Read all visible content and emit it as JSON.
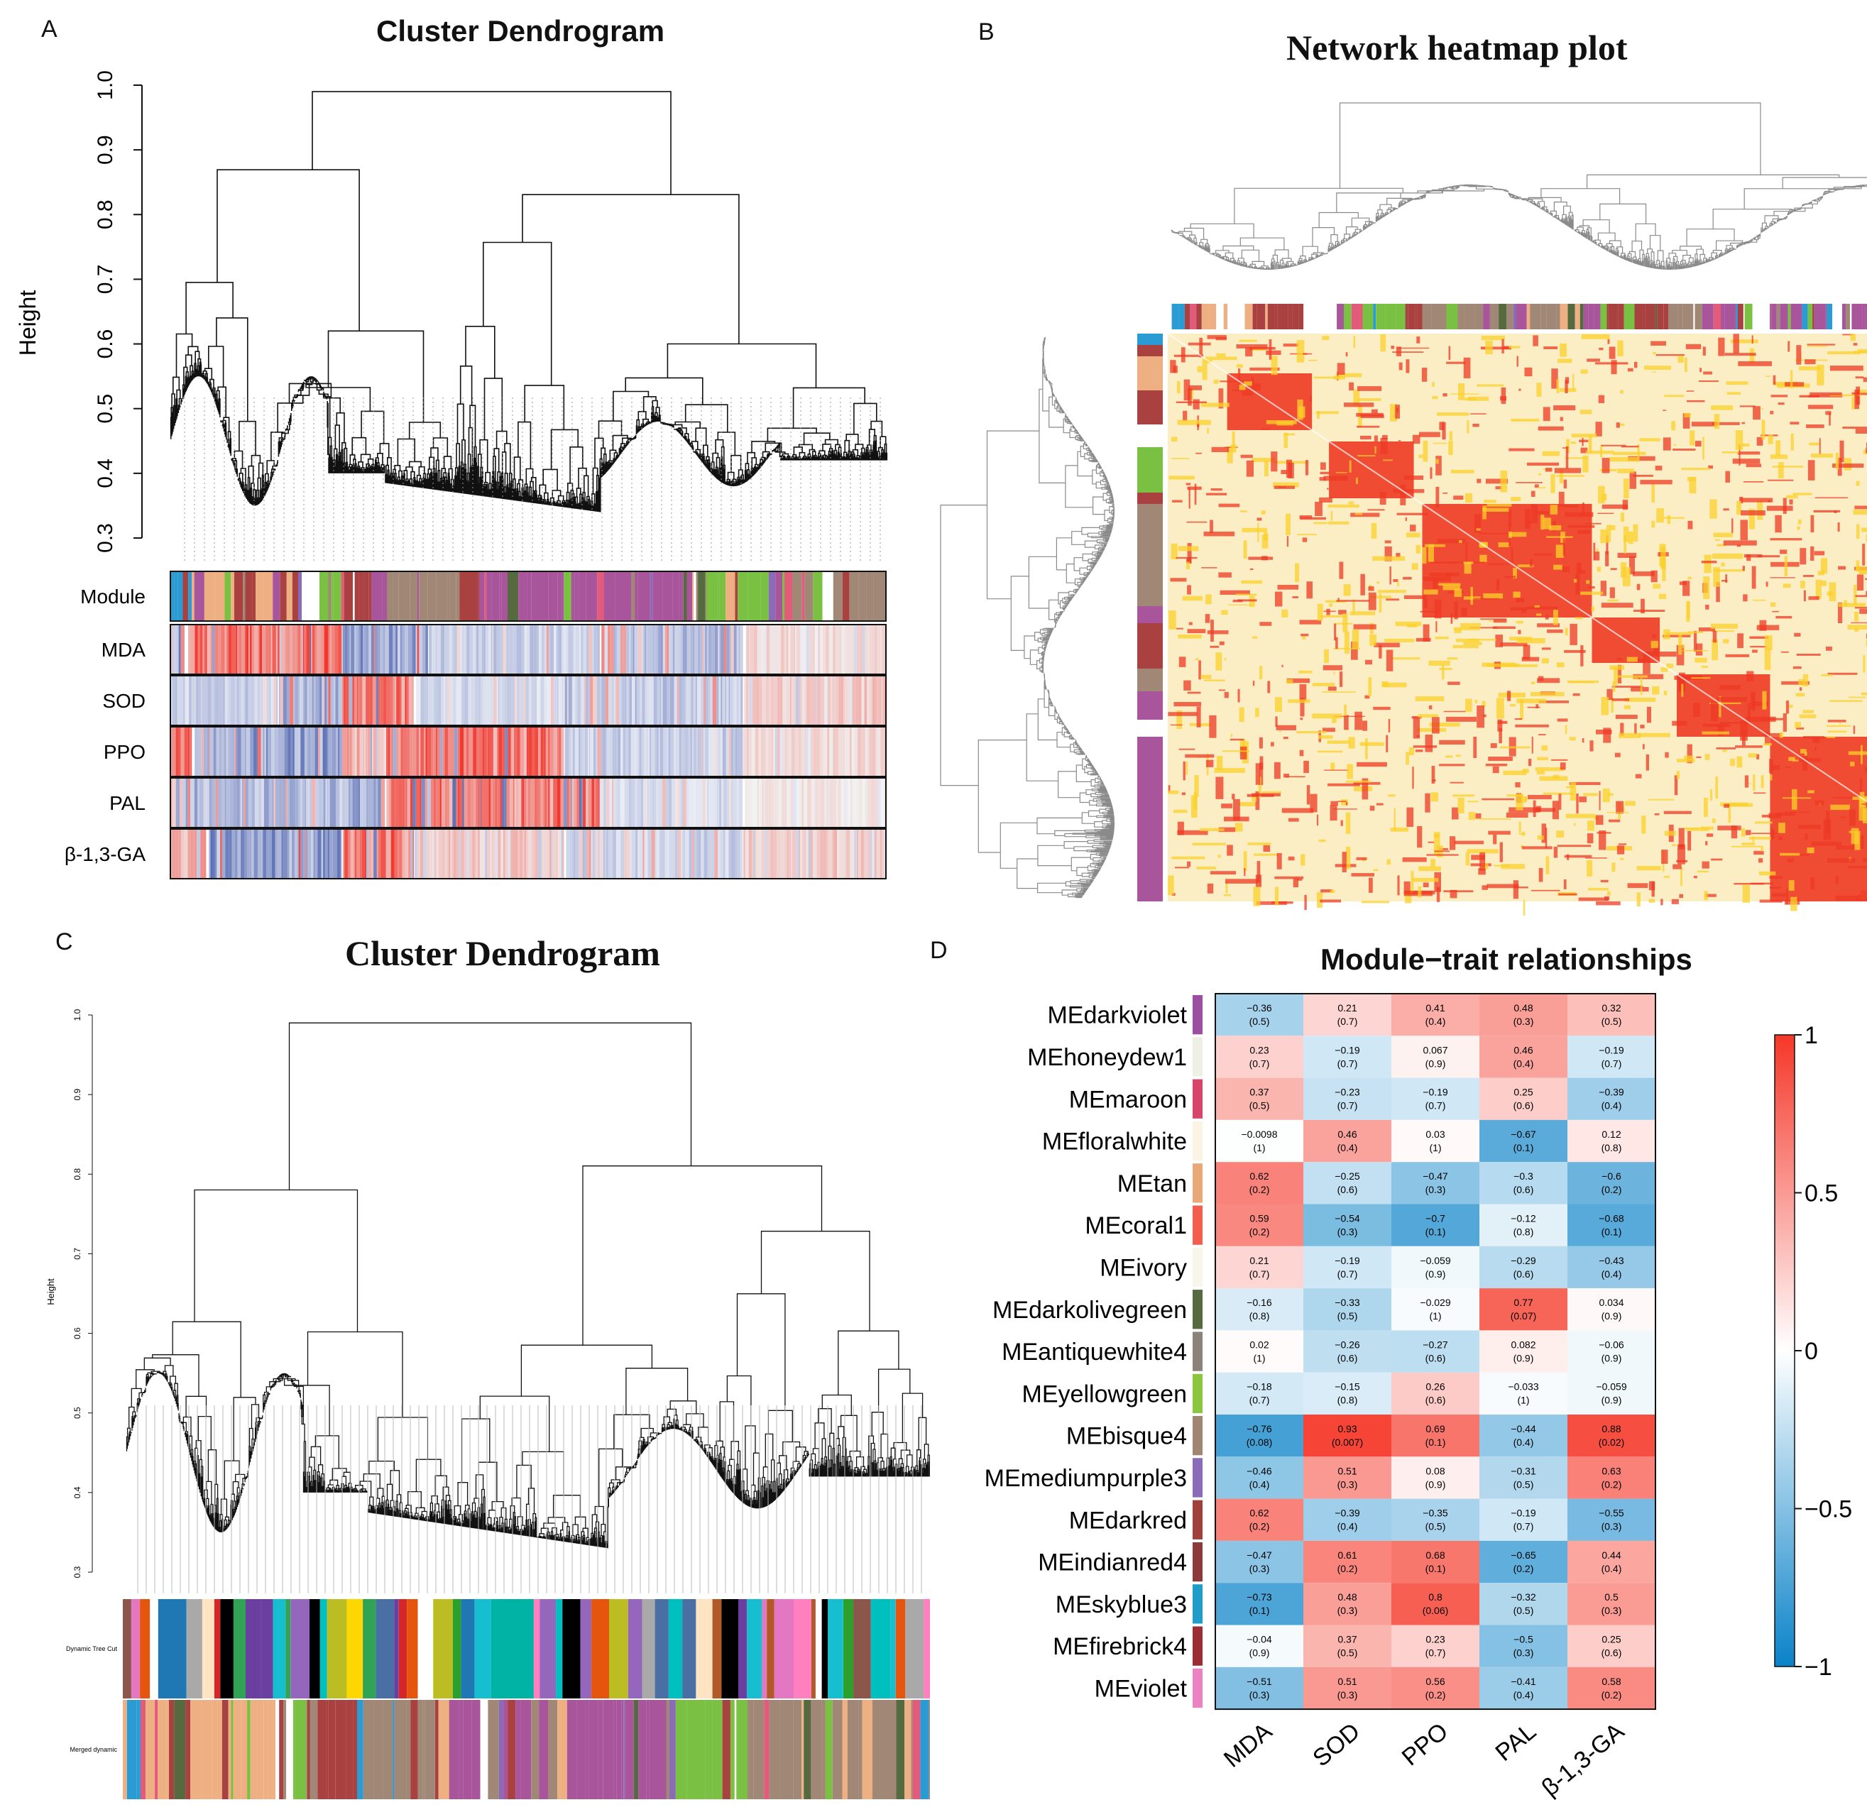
{
  "panel_labels": {
    "a": "A",
    "b": "B",
    "c": "C",
    "d": "D"
  },
  "colors": {
    "tan": "#eeb083",
    "darkred": "#a8413f",
    "brown": "#a08776",
    "purple": "#a8559c",
    "green": "#79c043",
    "skyblue": "#2a9bd3",
    "trait_red": "#f03a2c",
    "trait_blue": "#5b6fb5",
    "heat_bg": "#fbeec4",
    "heat_hot": "#ee3a24",
    "heat_mid": "#fbd02a"
  },
  "chart_data": [
    {
      "type": "dendrogram",
      "title": "Cluster Dendrogram",
      "ylabel": "Height",
      "yticks": [
        "0.3",
        "0.4",
        "0.5",
        "0.6",
        "0.7",
        "0.8",
        "0.9",
        "1.0"
      ],
      "ylim": [
        0.3,
        1.0
      ],
      "row_labels": [
        "Module",
        "MDA",
        "SOD",
        "PPO",
        "PAL",
        "β-1,3-GA"
      ]
    },
    {
      "type": "heatmap",
      "title": "Network heatmap plot"
    },
    {
      "type": "dendrogram",
      "title": "Cluster Dendrogram",
      "ylabel": "Height",
      "yticks": [
        "0.3",
        "0.4",
        "0.5",
        "0.6",
        "0.7",
        "0.8",
        "0.9",
        "1.0"
      ],
      "ylim": [
        0.3,
        1.0
      ],
      "row_labels": [
        "Dynamic Tree Cut",
        "Merged dynamic"
      ]
    },
    {
      "type": "heatmap",
      "title": "Module−trait relationships",
      "columns": [
        "MDA",
        "SOD",
        "PPO",
        "PAL",
        "β-1,3-GA"
      ],
      "rows": [
        {
          "name": "MEdarkviolet",
          "color": "#9c4fa0",
          "values": [
            "−0.36",
            "0.21",
            "0.41",
            "0.48",
            "0.32"
          ],
          "p": [
            "(0.5)",
            "(0.7)",
            "(0.4)",
            "(0.3)",
            "(0.5)"
          ]
        },
        {
          "name": "MEhoneydew1",
          "color": "#eef0e6",
          "values": [
            "0.23",
            "−0.19",
            "0.067",
            "0.46",
            "−0.19"
          ],
          "p": [
            "(0.7)",
            "(0.7)",
            "(0.9)",
            "(0.4)",
            "(0.7)"
          ]
        },
        {
          "name": "MEmaroon",
          "color": "#d8456a",
          "values": [
            "0.37",
            "−0.23",
            "−0.19",
            "0.25",
            "−0.39"
          ],
          "p": [
            "(0.5)",
            "(0.7)",
            "(0.7)",
            "(0.6)",
            "(0.4)"
          ]
        },
        {
          "name": "MEfloralwhite",
          "color": "#fbf3e4",
          "values": [
            "−0.0098",
            "0.46",
            "0.03",
            "−0.67",
            "0.12"
          ],
          "p": [
            "(1)",
            "(0.4)",
            "(1)",
            "(0.1)",
            "(0.8)"
          ]
        },
        {
          "name": "MEtan",
          "color": "#e8a878",
          "values": [
            "0.62",
            "−0.25",
            "−0.47",
            "−0.3",
            "−0.6"
          ],
          "p": [
            "(0.2)",
            "(0.6)",
            "(0.3)",
            "(0.6)",
            "(0.2)"
          ]
        },
        {
          "name": "MEcoral1",
          "color": "#f25f4d",
          "values": [
            "0.59",
            "−0.54",
            "−0.7",
            "−0.12",
            "−0.68"
          ],
          "p": [
            "(0.2)",
            "(0.3)",
            "(0.1)",
            "(0.8)",
            "(0.1)"
          ]
        },
        {
          "name": "MEivory",
          "color": "#f8f6ea",
          "values": [
            "0.21",
            "−0.19",
            "−0.059",
            "−0.29",
            "−0.43"
          ],
          "p": [
            "(0.7)",
            "(0.7)",
            "(0.9)",
            "(0.6)",
            "(0.4)"
          ]
        },
        {
          "name": "MEdarkolivegreen",
          "color": "#556b3f",
          "values": [
            "−0.16",
            "−0.33",
            "−0.029",
            "0.77",
            "0.034"
          ],
          "p": [
            "(0.8)",
            "(0.5)",
            "(1)",
            "(0.07)",
            "(0.9)"
          ]
        },
        {
          "name": "MEantiquewhite4",
          "color": "#8b8378",
          "values": [
            "0.02",
            "−0.26",
            "−0.27",
            "0.082",
            "−0.06"
          ],
          "p": [
            "(1)",
            "(0.6)",
            "(0.6)",
            "(0.9)",
            "(0.9)"
          ]
        },
        {
          "name": "MEyellowgreen",
          "color": "#8cc63f",
          "values": [
            "−0.18",
            "−0.15",
            "0.26",
            "−0.033",
            "−0.059"
          ],
          "p": [
            "(0.7)",
            "(0.8)",
            "(0.6)",
            "(1)",
            "(0.9)"
          ]
        },
        {
          "name": "MEbisque4",
          "color": "#a08672",
          "values": [
            "−0.76",
            "0.93",
            "0.69",
            "−0.44",
            "0.88"
          ],
          "p": [
            "(0.08)",
            "(0.007)",
            "(0.1)",
            "(0.4)",
            "(0.02)"
          ]
        },
        {
          "name": "MEmediumpurple3",
          "color": "#8a6bb8",
          "values": [
            "−0.46",
            "0.51",
            "0.08",
            "−0.31",
            "0.63"
          ],
          "p": [
            "(0.4)",
            "(0.3)",
            "(0.9)",
            "(0.5)",
            "(0.2)"
          ]
        },
        {
          "name": "MEdarkred",
          "color": "#a0403a",
          "values": [
            "0.62",
            "−0.39",
            "−0.35",
            "−0.19",
            "−0.55"
          ],
          "p": [
            "(0.2)",
            "(0.4)",
            "(0.5)",
            "(0.7)",
            "(0.3)"
          ]
        },
        {
          "name": "MEindianred4",
          "color": "#8b3a3a",
          "values": [
            "−0.47",
            "0.61",
            "0.68",
            "−0.65",
            "0.44"
          ],
          "p": [
            "(0.3)",
            "(0.2)",
            "(0.1)",
            "(0.2)",
            "(0.4)"
          ]
        },
        {
          "name": "MEskyblue3",
          "color": "#1f9cc7",
          "values": [
            "−0.73",
            "0.48",
            "0.8",
            "−0.32",
            "0.5"
          ],
          "p": [
            "(0.1)",
            "(0.3)",
            "(0.06)",
            "(0.5)",
            "(0.3)"
          ]
        },
        {
          "name": "MEfirebrick4",
          "color": "#9b2e34",
          "values": [
            "−0.04",
            "0.37",
            "0.23",
            "−0.5",
            "0.25"
          ],
          "p": [
            "(0.9)",
            "(0.5)",
            "(0.7)",
            "(0.3)",
            "(0.6)"
          ]
        },
        {
          "name": "MEviolet",
          "color": "#ea83c4",
          "values": [
            "−0.51",
            "0.51",
            "0.56",
            "−0.41",
            "0.58"
          ],
          "p": [
            "(0.3)",
            "(0.3)",
            "(0.2)",
            "(0.4)",
            "(0.2)"
          ]
        }
      ],
      "colorbar": {
        "ticks": [
          "1",
          "0.5",
          "0",
          "−0.5",
          "−1"
        ],
        "range": [
          -1,
          1
        ]
      }
    }
  ]
}
